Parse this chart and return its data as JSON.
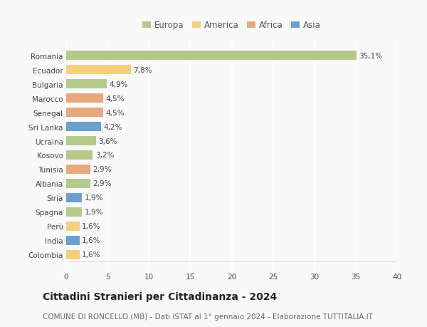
{
  "countries": [
    "Romania",
    "Ecuador",
    "Bulgaria",
    "Marocco",
    "Senegal",
    "Sri Lanka",
    "Ucraina",
    "Kosovo",
    "Tunisia",
    "Albania",
    "Siria",
    "Spagna",
    "Perù",
    "India",
    "Colombia"
  ],
  "values": [
    35.1,
    7.8,
    4.9,
    4.5,
    4.5,
    4.2,
    3.6,
    3.2,
    2.9,
    2.9,
    1.9,
    1.9,
    1.6,
    1.6,
    1.6
  ],
  "continents": [
    "Europa",
    "America",
    "Europa",
    "Africa",
    "Africa",
    "Asia",
    "Europa",
    "Europa",
    "Africa",
    "Europa",
    "Asia",
    "Europa",
    "America",
    "Asia",
    "America"
  ],
  "labels": [
    "35,1%",
    "7,8%",
    "4,9%",
    "4,5%",
    "4,5%",
    "4,2%",
    "3,6%",
    "3,2%",
    "2,9%",
    "2,9%",
    "1,9%",
    "1,9%",
    "1,6%",
    "1,6%",
    "1,6%"
  ],
  "continent_colors": {
    "Europa": "#b5c98a",
    "America": "#f5d07a",
    "Africa": "#e8a87c",
    "Asia": "#6b9fcf"
  },
  "legend_order": [
    "Europa",
    "America",
    "Africa",
    "Asia"
  ],
  "xlim": [
    0,
    40
  ],
  "xticks": [
    0,
    5,
    10,
    15,
    20,
    25,
    30,
    35,
    40
  ],
  "title": "Cittadini Stranieri per Cittadinanza - 2024",
  "subtitle": "COMUNE DI RONCELLO (MB) - Dati ISTAT al 1° gennaio 2024 - Elaborazione TUTTITALIA.IT",
  "background_color": "#f9f9f9",
  "grid_color": "#ffffff",
  "bar_height": 0.65,
  "title_fontsize": 10,
  "subtitle_fontsize": 7.5,
  "label_fontsize": 7.5,
  "tick_fontsize": 7.5,
  "legend_fontsize": 8.5
}
